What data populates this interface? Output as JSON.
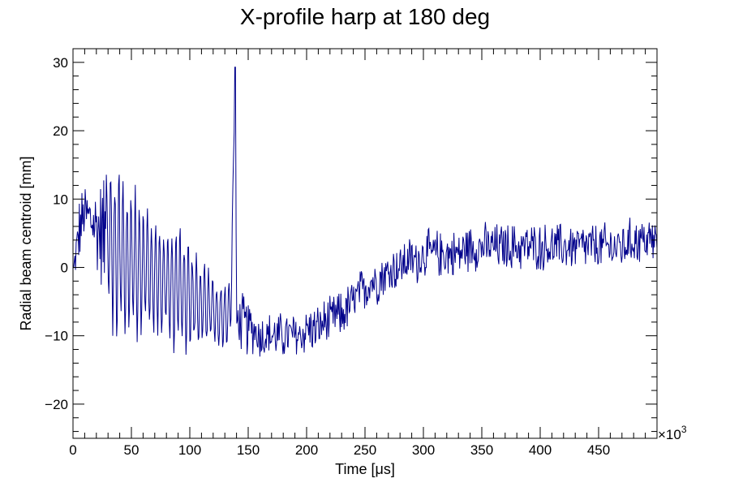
{
  "chart_data": {
    "type": "line",
    "title": "X-profile harp at 180 deg",
    "xlabel": "Time [μs]",
    "ylabel": "Radial beam centroid [mm]",
    "x_multiplier_label": "×10",
    "x_multiplier_exponent": "3",
    "xlim": [
      0,
      500
    ],
    "ylim": [
      -25,
      32
    ],
    "x_ticks": [
      0,
      50,
      100,
      150,
      200,
      250,
      300,
      350,
      400,
      450
    ],
    "y_ticks": [
      -20,
      -10,
      0,
      10,
      20,
      30
    ],
    "x_tick_labels": [
      "0",
      "50",
      "100",
      "150",
      "200",
      "250",
      "300",
      "350",
      "400",
      "450"
    ],
    "y_tick_labels": [
      "−20",
      "−10",
      "0",
      "10",
      "20",
      "30"
    ],
    "grid": false,
    "legend": "none",
    "series": [
      {
        "color": "#00008b",
        "style": "histogram",
        "x": [
          0,
          5,
          10,
          15,
          20,
          25,
          30,
          35,
          40,
          45,
          50,
          55,
          60,
          65,
          70,
          75,
          80,
          85,
          90,
          95,
          100,
          105,
          110,
          115,
          120,
          125,
          130,
          135,
          139,
          140,
          145,
          150,
          155,
          160,
          165,
          170,
          175,
          180,
          185,
          190,
          195,
          200,
          205,
          210,
          215,
          220,
          225,
          230,
          235,
          240,
          245,
          250,
          255,
          260,
          265,
          270,
          275,
          280,
          285,
          290,
          295,
          300,
          310,
          320,
          330,
          340,
          350,
          360,
          370,
          380,
          390,
          400,
          410,
          420,
          430,
          440,
          450,
          460,
          470,
          480,
          490,
          500
        ],
        "y": [
          -1,
          5,
          8,
          7,
          6,
          5,
          4,
          3,
          2,
          1,
          1,
          0,
          0,
          -1,
          -1,
          -2,
          -2,
          -3,
          -3,
          -4,
          -4,
          -5,
          -5,
          -6,
          -6,
          -7,
          -7,
          -7,
          29,
          -8,
          -8,
          -9,
          -9,
          -10,
          -10,
          -10,
          -10,
          -10,
          -10,
          -10,
          -10,
          -9,
          -9,
          -9,
          -8,
          -8,
          -7,
          -7,
          -6,
          -5,
          -4,
          -3,
          -2,
          -2,
          -1,
          -1,
          0,
          0,
          1,
          1,
          1,
          2,
          2,
          2,
          2,
          3,
          3,
          3,
          3,
          3,
          3,
          3,
          3,
          3,
          3,
          3,
          3,
          3,
          3,
          4,
          4,
          4
        ],
        "amplitude": [
          1,
          6,
          5,
          6,
          8,
          10,
          13,
          15,
          14,
          13,
          12,
          12,
          11,
          11,
          10,
          10,
          10,
          10,
          10,
          9,
          9,
          8,
          7,
          7,
          6,
          6,
          6,
          5,
          0,
          5,
          5,
          5,
          4,
          4,
          4,
          4,
          4,
          4,
          4,
          4,
          4,
          4,
          4,
          4,
          4,
          4,
          4,
          4,
          4,
          4,
          4,
          4,
          4,
          4,
          4,
          4,
          4,
          4,
          4,
          4,
          4,
          4,
          4,
          4,
          4,
          4,
          4,
          4,
          4,
          4,
          4,
          4,
          4,
          4,
          4,
          4,
          4,
          4,
          4,
          4,
          4,
          4
        ]
      }
    ]
  }
}
